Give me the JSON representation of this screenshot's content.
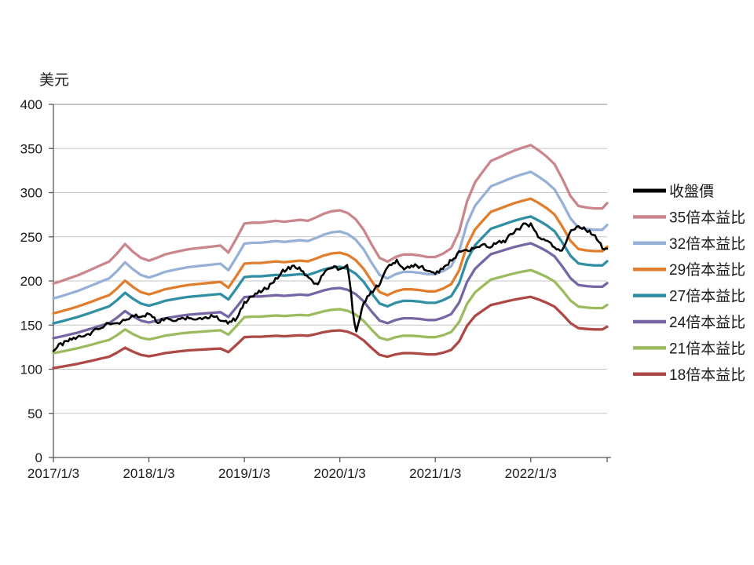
{
  "y_axis_title": "美元",
  "chart_data": {
    "type": "line",
    "title": "",
    "xlabel": "",
    "ylabel": "美元",
    "ylim": [
      0,
      400
    ],
    "ytick_step": 50,
    "grid": true,
    "legend_position": "right",
    "x_tick_labels": [
      "2017/1/3",
      "2018/1/3",
      "2019/1/3",
      "2020/1/3",
      "2021/1/3",
      "2022/1/3"
    ],
    "x_end_years": 5.8,
    "band_formula": "band_value = eps_ttm_monthly[i] * multiple",
    "series": [
      {
        "id": "close",
        "name": "收盤價",
        "color": "#000000",
        "role": "close"
      },
      {
        "id": "pe35",
        "name": "35倍本益比",
        "color": "#CB868D",
        "multiple": 35
      },
      {
        "id": "pe32",
        "name": "32倍本益比",
        "color": "#97B1D6",
        "multiple": 32
      },
      {
        "id": "pe29",
        "name": "29倍本益比",
        "color": "#E07E2E",
        "multiple": 29
      },
      {
        "id": "pe27",
        "name": "27倍本益比",
        "color": "#318FA3",
        "multiple": 27
      },
      {
        "id": "pe24",
        "name": "24倍本益比",
        "color": "#7766A4",
        "multiple": 24
      },
      {
        "id": "pe21",
        "name": "21倍本益比",
        "color": "#9CBB5F",
        "multiple": 21
      },
      {
        "id": "pe18",
        "name": "18倍本益比",
        "color": "#AD4845",
        "multiple": 18
      }
    ],
    "eps_ttm_monthly": [
      5.63,
      5.71,
      5.8,
      5.89,
      6.0,
      6.11,
      6.23,
      6.34,
      6.6,
      6.91,
      6.66,
      6.46,
      6.37,
      6.46,
      6.57,
      6.63,
      6.69,
      6.74,
      6.77,
      6.8,
      6.83,
      6.86,
      6.63,
      7.09,
      7.57,
      7.6,
      7.6,
      7.63,
      7.66,
      7.63,
      7.66,
      7.69,
      7.66,
      7.77,
      7.89,
      7.97,
      8.0,
      7.91,
      7.71,
      7.37,
      6.89,
      6.46,
      6.34,
      6.49,
      6.57,
      6.57,
      6.54,
      6.49,
      6.49,
      6.6,
      6.77,
      7.31,
      8.29,
      8.91,
      9.26,
      9.6,
      9.71,
      9.83,
      9.94,
      10.03,
      10.11,
      9.94,
      9.74,
      9.49,
      9.0,
      8.46,
      8.14,
      8.09,
      8.06,
      8.06,
      8.23
    ],
    "close_monthly": [
      121,
      128,
      133,
      136,
      139,
      143,
      148,
      150,
      152,
      156,
      162,
      159,
      164,
      154,
      158,
      156,
      157,
      159,
      157,
      158,
      160,
      156,
      154,
      156,
      176,
      183,
      187,
      194,
      202,
      212,
      217,
      213,
      204,
      196,
      209,
      216,
      214,
      218,
      139,
      175,
      187,
      196,
      216,
      223,
      213,
      218,
      215,
      212,
      208,
      214,
      223,
      233,
      234,
      238,
      241,
      239,
      243,
      247,
      257,
      263,
      265,
      250,
      246,
      239,
      234,
      257,
      261,
      258,
      251,
      238,
      234
    ],
    "close_noise_amp": 2.6,
    "colors": {
      "grid": "#C6C6C6",
      "grid_top": "#8C8C8C",
      "axis": "#595959",
      "text": "#1A1A1A"
    }
  }
}
